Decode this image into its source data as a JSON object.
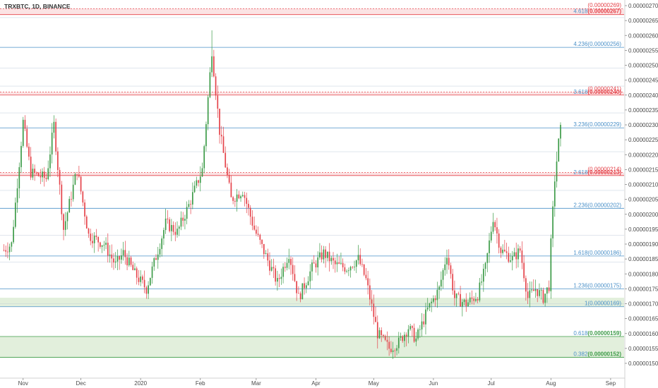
{
  "chart_data": {
    "type": "candlestick",
    "title": "TRXBTC, 1D, BINANCE",
    "y_axis_position": "right",
    "ylim": [
      1.47e-06,
      2.73e-06
    ],
    "y_ticks": [
      "0.00000270",
      "0.00000265",
      "0.00000260",
      "0.00000255",
      "0.00000250",
      "0.00000245",
      "0.00000240",
      "0.00000235",
      "0.00000230",
      "0.00000225",
      "0.00000220",
      "0.00000215",
      "0.00000210",
      "0.00000205",
      "0.00000200",
      "0.00000195",
      "0.00000190",
      "0.00000185",
      "0.00000180",
      "0.00000175",
      "0.00000170",
      "0.00000165",
      "0.00000160",
      "0.00000155",
      "0.00000150"
    ],
    "x_ticks": [
      "Nov",
      "Dec",
      "2020",
      "Feb",
      "Mar",
      "Apr",
      "May",
      "Jun",
      "Jul",
      "Aug",
      "Sep"
    ],
    "x_range_days": [
      -2,
      322
    ],
    "x_tick_days": [
      10,
      40,
      71,
      102,
      131,
      162,
      192,
      223,
      253,
      284,
      315
    ],
    "last_candle_day": 289,
    "up_color": "#3d9b48",
    "down_color": "#e5434a",
    "grid": false,
    "key_prices": [
      {
        "day": 0,
        "price": 1.88e-06
      },
      {
        "day": 4,
        "price": 1.9e-06
      },
      {
        "day": 10,
        "price": 2.31e-06
      },
      {
        "day": 14,
        "price": 2.14e-06
      },
      {
        "day": 22,
        "price": 2.12e-06
      },
      {
        "day": 26,
        "price": 2.3e-06
      },
      {
        "day": 31,
        "price": 1.95e-06
      },
      {
        "day": 38,
        "price": 2.15e-06
      },
      {
        "day": 44,
        "price": 1.93e-06
      },
      {
        "day": 52,
        "price": 1.9e-06
      },
      {
        "day": 58,
        "price": 1.83e-06
      },
      {
        "day": 62,
        "price": 1.87e-06
      },
      {
        "day": 68,
        "price": 1.8e-06
      },
      {
        "day": 74,
        "price": 1.75e-06
      },
      {
        "day": 80,
        "price": 1.88e-06
      },
      {
        "day": 84,
        "price": 1.97e-06
      },
      {
        "day": 90,
        "price": 1.94e-06
      },
      {
        "day": 96,
        "price": 2.03e-06
      },
      {
        "day": 103,
        "price": 2.15e-06
      },
      {
        "day": 108,
        "price": 2.55e-06
      },
      {
        "day": 112,
        "price": 2.28e-06
      },
      {
        "day": 118,
        "price": 2.05e-06
      },
      {
        "day": 124,
        "price": 2.08e-06
      },
      {
        "day": 130,
        "price": 1.95e-06
      },
      {
        "day": 136,
        "price": 1.86e-06
      },
      {
        "day": 142,
        "price": 1.77e-06
      },
      {
        "day": 148,
        "price": 1.87e-06
      },
      {
        "day": 153,
        "price": 1.72e-06
      },
      {
        "day": 160,
        "price": 1.82e-06
      },
      {
        "day": 166,
        "price": 1.87e-06
      },
      {
        "day": 172,
        "price": 1.83e-06
      },
      {
        "day": 178,
        "price": 1.82e-06
      },
      {
        "day": 184,
        "price": 1.85e-06
      },
      {
        "day": 188,
        "price": 1.78e-06
      },
      {
        "day": 194,
        "price": 1.6e-06
      },
      {
        "day": 200,
        "price": 1.55e-06
      },
      {
        "day": 205,
        "price": 1.57e-06
      },
      {
        "day": 210,
        "price": 1.62e-06
      },
      {
        "day": 214,
        "price": 1.58e-06
      },
      {
        "day": 220,
        "price": 1.68e-06
      },
      {
        "day": 226,
        "price": 1.75e-06
      },
      {
        "day": 230,
        "price": 1.87e-06
      },
      {
        "day": 234,
        "price": 1.72e-06
      },
      {
        "day": 240,
        "price": 1.7e-06
      },
      {
        "day": 246,
        "price": 1.73e-06
      },
      {
        "day": 250,
        "price": 1.82e-06
      },
      {
        "day": 254,
        "price": 1.99e-06
      },
      {
        "day": 258,
        "price": 1.88e-06
      },
      {
        "day": 264,
        "price": 1.85e-06
      },
      {
        "day": 268,
        "price": 1.88e-06
      },
      {
        "day": 272,
        "price": 1.72e-06
      },
      {
        "day": 276,
        "price": 1.75e-06
      },
      {
        "day": 280,
        "price": 1.72e-06
      },
      {
        "day": 283,
        "price": 1.76e-06
      },
      {
        "day": 284,
        "price": 1.9e-06
      },
      {
        "day": 286,
        "price": 2.12e-06
      },
      {
        "day": 289,
        "price": 2.3e-06
      }
    ],
    "red_bands": [
      {
        "low": 2.67e-06,
        "high": 2.69e-06,
        "low_label": "(0.00000267)",
        "high_label": "(0.00000269)"
      },
      {
        "low": 2.4e-06,
        "high": 2.41e-06,
        "low_label": "(0.00000240)",
        "high_label": "(0.00000241)"
      },
      {
        "low": 2.13e-06,
        "high": 2.14e-06,
        "low_label": "(0.00000213)",
        "high_label": "(0.00000214)"
      }
    ],
    "fib_levels": [
      {
        "ratio_label": "4.618",
        "price_label": "(0.00000267)",
        "value": 2.67e-06,
        "color": "#e5434a",
        "ratio_color": "#4a90c8"
      },
      {
        "ratio_label": "4.236",
        "price_label": "(0.00000256)",
        "value": 2.56e-06,
        "color": "#4a90c8",
        "ratio_color": "#4a90c8"
      },
      {
        "ratio_label": "3.618",
        "price_label": "(0.00000240)",
        "value": 2.4e-06,
        "color": "#e5434a",
        "ratio_color": "#4a90c8"
      },
      {
        "ratio_label": "3.236",
        "price_label": "(0.00000229)",
        "value": 2.29e-06,
        "color": "#4a90c8",
        "ratio_color": "#4a90c8"
      },
      {
        "ratio_label": "2.618",
        "price_label": "(0.00000213)",
        "value": 2.13e-06,
        "color": "#e5434a",
        "ratio_color": "#4a90c8"
      },
      {
        "ratio_label": "2.236",
        "price_label": "(0.00000202)",
        "value": 2.02e-06,
        "color": "#4a90c8",
        "ratio_color": "#4a90c8"
      },
      {
        "ratio_label": "1.618",
        "price_label": "(0.00000186)",
        "value": 1.86e-06,
        "color": "#4a90c8",
        "ratio_color": "#4a90c8"
      },
      {
        "ratio_label": "1.236",
        "price_label": "(0.00000175)",
        "value": 1.75e-06,
        "color": "#4a90c8",
        "ratio_color": "#4a90c8"
      },
      {
        "ratio_label": "1",
        "price_label": "(0.00000169)",
        "value": 1.69e-06,
        "color": "#4a90c8",
        "ratio_color": "#4a90c8"
      },
      {
        "ratio_label": "0.618",
        "price_label": "(0.00000159)",
        "value": 1.59e-06,
        "color": "#3d9b48",
        "ratio_color": "#4a90c8"
      },
      {
        "ratio_label": "0.382",
        "price_label": "(0.00000152)",
        "value": 1.52e-06,
        "color": "#3d9b48",
        "ratio_color": "#4a90c8"
      }
    ],
    "green_zones": [
      {
        "low": 1.69e-06,
        "high": 1.72e-06
      },
      {
        "low": 1.52e-06,
        "high": 1.59e-06
      }
    ],
    "faint_lines": [
      2.66e-06,
      2.49e-06,
      2.43e-06,
      2.34e-06,
      2.21e-06,
      2.08e-06,
      1.93e-06,
      1.84e-06,
      1.7e-06
    ],
    "colors": {
      "fib_blue": "#4a90c8",
      "fib_red": "#e5434a",
      "fib_green": "#3d9b48",
      "red_band_fill": "#fbe3e4",
      "green_zone_fill": "#e2efdc",
      "faint_line": "#b9c7d6",
      "axis_text": "#4a4a4a"
    }
  }
}
